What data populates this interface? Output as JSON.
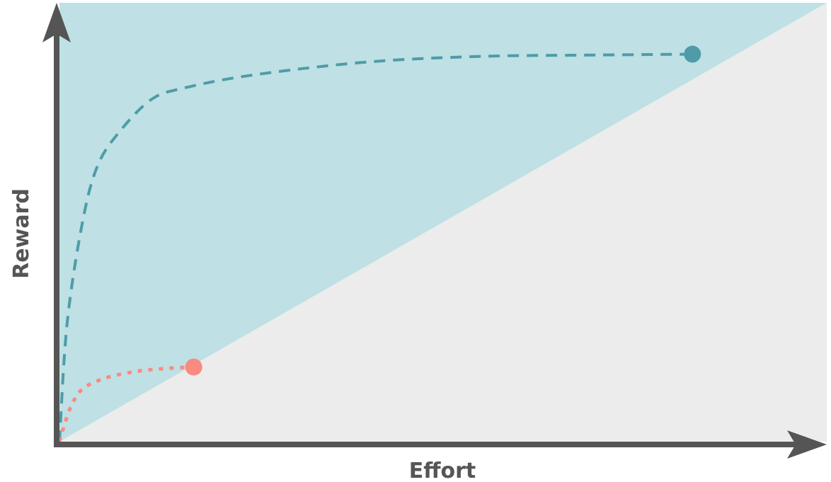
{
  "chart_data": {
    "type": "line",
    "xlabel": "Effort",
    "ylabel": "Reward",
    "xlim": [
      0,
      100
    ],
    "ylim": [
      0,
      100
    ],
    "grid": false,
    "legend": "none",
    "regions": [
      {
        "vertices": [
          [
            0,
            0
          ],
          [
            100,
            100
          ],
          [
            0,
            100
          ]
        ],
        "color": "#bfe0e5"
      },
      {
        "vertices": [
          [
            0,
            0
          ],
          [
            100,
            0
          ],
          [
            100,
            100
          ]
        ],
        "color": "#ececec"
      }
    ],
    "boundary_line": {
      "x": [
        0,
        100
      ],
      "y": [
        0,
        100
      ]
    },
    "series": [
      {
        "style": "dashed",
        "color": "#4e9ca7",
        "x": [
          0,
          1,
          3,
          5,
          8,
          12,
          16,
          25,
          40,
          55,
          70,
          82.5
        ],
        "y": [
          0,
          27,
          50,
          63,
          71,
          78,
          80.5,
          83.5,
          86.5,
          87.8,
          88.1,
          88.3
        ],
        "end_marker": true
      },
      {
        "style": "dotted",
        "color": "#f98a80",
        "x": [
          0,
          0.5,
          1.5,
          3,
          6,
          10,
          14,
          17.5
        ],
        "y": [
          0,
          3,
          8,
          12,
          14.5,
          16,
          16.7,
          17
        ]
      }
    ],
    "markers": [
      {
        "x": 82.5,
        "y": 88.3,
        "color": "#4e9ca7"
      },
      {
        "x": 17.5,
        "y": 17,
        "color": "#f98a80"
      }
    ]
  },
  "colors": {
    "axis": "#555555",
    "label": "#555555"
  }
}
